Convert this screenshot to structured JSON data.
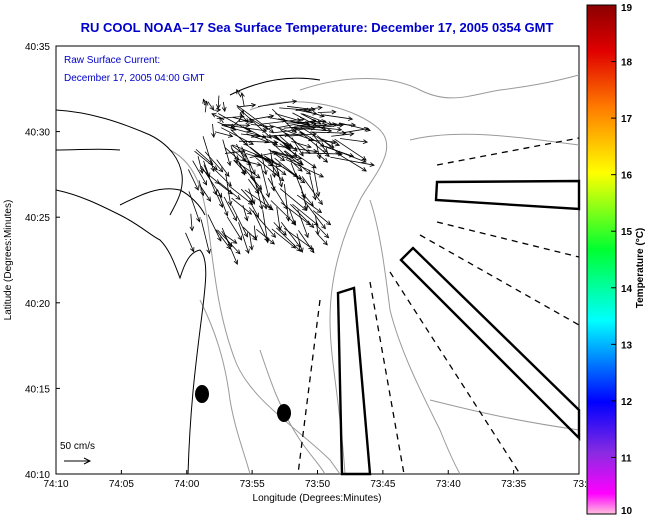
{
  "title": "RU COOL   NOAA–17  Sea Surface Temperature:  December 17, 2005 0354 GMT",
  "subtitle_line1": "Raw Surface Current:",
  "subtitle_line2": "December 17, 2005 04:00 GMT",
  "colors": {
    "title": "#0000cc",
    "subtitle": "#0000cc",
    "coast": "#000000",
    "bathymetry": "#999999",
    "vectors": "#000000",
    "boxes": "#000000"
  },
  "chart_data": {
    "type": "map",
    "title": "RU COOL   NOAA–17  Sea Surface Temperature:  December 17, 2005 0354 GMT",
    "xlabel": "Longitude (Degrees:Minutes)",
    "ylabel": "Latitude (Degrees:Minutes)",
    "x_range_min_west": [
      74.1667,
      73.5
    ],
    "y_range_min_north": [
      40.1667,
      40.5833
    ],
    "x_ticks": [
      "74:10",
      "74:05",
      "74:00",
      "73:55",
      "73:50",
      "73:45",
      "73:40",
      "73:35",
      "73:3"
    ],
    "y_ticks": [
      "40:35",
      "40:30",
      "40:25",
      "40:20",
      "40:15",
      "40:10"
    ],
    "scale_label": "50 cm/s",
    "colorbar": {
      "label": "Temperature (°C)",
      "min": 10,
      "max": 19,
      "ticks": [
        "19",
        "18",
        "17",
        "16",
        "15",
        "14",
        "13",
        "12",
        "11",
        "10"
      ],
      "stops": [
        "#8b0000",
        "#ff0000",
        "#ff8c00",
        "#ffff00",
        "#00ff00",
        "#00ffff",
        "#0000ff",
        "#8a2be2",
        "#ff00ff",
        "#ffc0cb"
      ]
    },
    "moorings": [
      {
        "lon": 73.9817,
        "lat": 40.2417
      },
      {
        "lon": 73.9033,
        "lat": 40.22
      }
    ],
    "vector_field_note": "raw surface current vectors near harbor entrance"
  }
}
